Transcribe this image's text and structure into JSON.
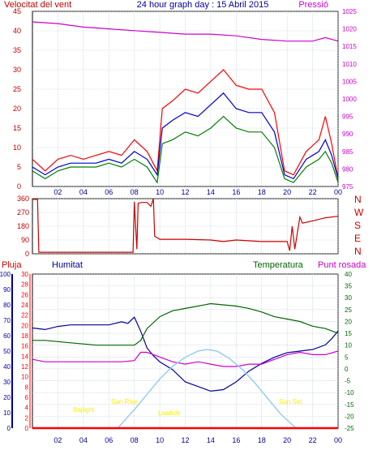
{
  "header": {
    "left_title": "Velocitat del vent",
    "center_title": "24 hour graph day : 15 Abril 2015",
    "right_title": "Pressió"
  },
  "colors": {
    "bg": "#ffffff",
    "grid": "#b7c7d2",
    "wind_left_axis": "#c00000",
    "pressure_axis": "#cc00cc",
    "wind_gust": "#ff0000",
    "wind_avg": "#0000cc",
    "wind_speed": "#008000",
    "direction": "#cc0000",
    "rain": "#ff0000",
    "humidity": "#000099",
    "temperature": "#006600",
    "dewpoint": "#cc00cc",
    "sun_curve": "#99ccee",
    "sun_labels": "#ffee00"
  },
  "compass_labels": [
    "N",
    "W",
    "S",
    "E",
    "N"
  ],
  "bottom_legend": {
    "rain": "Pluja",
    "humidity": "Humitat",
    "temperature": "Temperatura",
    "dewpoint": "Punt rosada"
  },
  "sun_labels": {
    "twilight": "Bajlight",
    "sunrise": "Sun Rise",
    "solar_noon": "Lowtide",
    "sunset": "Sun Set"
  },
  "chart_data": [
    {
      "type": "line",
      "id": "wind",
      "title": "24 hour graph day : 15 Abril 2015",
      "x_hours_start": 0,
      "x_hours_end": 24,
      "x_tick_labels": [
        "02",
        "04",
        "06",
        "08",
        "10",
        "12",
        "14",
        "16",
        "18",
        "20",
        "22",
        "00"
      ],
      "y_left_label": "Velocitat del vent",
      "y_left_ticks": [
        0,
        5,
        10,
        15,
        20,
        25,
        30,
        35,
        40,
        45
      ],
      "ylim_left": [
        0,
        45
      ],
      "y_right_label": "Pressió",
      "y_right_ticks": [
        975,
        980,
        985,
        990,
        995,
        1000,
        1005,
        1010,
        1015,
        1020,
        1025
      ],
      "ylim_right": [
        975,
        1025
      ],
      "grid": true,
      "series": [
        {
          "key": "gust",
          "axis": "left",
          "x": [
            0,
            1,
            2,
            3,
            4,
            5,
            6,
            7,
            8,
            9,
            9.8,
            10.2,
            11,
            12,
            13,
            14,
            15,
            16,
            17,
            18,
            19,
            19.8,
            20.5,
            21.5,
            22.5,
            23,
            23.5,
            24
          ],
          "y": [
            7,
            4,
            7,
            8,
            7,
            8,
            9,
            8,
            12,
            9,
            4,
            20,
            22,
            25,
            24,
            27,
            30,
            26,
            25,
            25,
            19,
            4,
            3,
            9,
            12,
            18,
            11,
            2
          ]
        },
        {
          "key": "avg",
          "axis": "left",
          "x": [
            0,
            1,
            2,
            3,
            4,
            5,
            6,
            7,
            8,
            9,
            9.8,
            10.2,
            11,
            12,
            13,
            14,
            15,
            16,
            17,
            18,
            19,
            19.8,
            20.5,
            21.5,
            22.5,
            23,
            23.5,
            24
          ],
          "y": [
            5,
            3,
            5,
            6,
            6,
            6,
            7,
            6,
            9,
            7,
            3,
            15,
            17,
            19,
            18,
            21,
            24,
            20,
            19,
            19,
            14,
            3,
            2,
            7,
            9,
            12,
            8,
            2
          ]
        },
        {
          "key": "speed",
          "axis": "left",
          "x": [
            0,
            1,
            2,
            3,
            4,
            5,
            6,
            7,
            8,
            9,
            9.8,
            10.2,
            11,
            12,
            13,
            14,
            15,
            16,
            17,
            18,
            19,
            19.8,
            20.5,
            21.5,
            22.5,
            23,
            23.5,
            24
          ],
          "y": [
            4,
            2,
            4,
            5,
            5,
            5,
            6,
            5,
            7,
            5,
            1,
            11,
            12,
            14,
            13,
            15,
            18,
            15,
            14,
            14,
            10,
            2,
            1,
            5,
            7,
            9,
            6,
            1
          ]
        },
        {
          "key": "pressure",
          "axis": "right",
          "x": [
            0,
            2,
            4,
            6,
            8,
            10,
            12,
            14,
            16,
            18,
            20,
            22,
            23,
            24
          ],
          "y": [
            1022,
            1021.5,
            1020.5,
            1020,
            1019.5,
            1019,
            1018.5,
            1018.5,
            1018,
            1017,
            1016.5,
            1016.5,
            1017.5,
            1016.5
          ]
        }
      ]
    },
    {
      "type": "line",
      "id": "direction",
      "x_hours_start": 0,
      "x_hours_end": 24,
      "y_ticks": [
        0,
        90,
        180,
        270,
        360
      ],
      "ylim": [
        0,
        360
      ],
      "grid": true,
      "series": [
        {
          "key": "direction",
          "x": [
            0,
            0.4,
            0.5,
            7.9,
            8.0,
            8.2,
            8.3,
            8.6,
            9.0,
            9.3,
            9.5,
            9.6,
            10.0,
            12,
            14,
            15,
            16,
            18,
            20,
            20.2,
            20.4,
            20.6,
            21.0,
            21.2,
            22,
            23,
            24
          ],
          "y": [
            355,
            355,
            10,
            10,
            340,
            30,
            330,
            335,
            335,
            310,
            360,
            115,
            95,
            95,
            90,
            80,
            90,
            80,
            80,
            20,
            180,
            30,
            240,
            200,
            215,
            235,
            245
          ]
        }
      ]
    },
    {
      "type": "line",
      "id": "weather",
      "x_hours_start": 0,
      "x_hours_end": 24,
      "left_axes": [
        {
          "key": "humidity_axis",
          "ticks": [
            0,
            10,
            20,
            30,
            40,
            50,
            60,
            70,
            80,
            90,
            100
          ],
          "lim": [
            0,
            100
          ]
        },
        {
          "key": "rain_axis",
          "ticks": [
            0,
            2,
            4,
            6,
            8,
            10,
            12,
            14,
            16,
            18,
            20,
            22,
            24,
            26,
            28,
            30
          ],
          "lim": [
            0,
            30
          ]
        }
      ],
      "right_axis": {
        "key": "temp_axis",
        "ticks": [
          -25,
          -20,
          -15,
          -10,
          -5,
          0,
          5,
          10,
          15,
          20,
          25,
          30,
          35,
          40
        ],
        "lim": [
          -25,
          40
        ]
      },
      "grid": true,
      "series": [
        {
          "key": "humidity",
          "axis": "humidity_axis",
          "x": [
            0,
            1,
            2,
            3,
            4,
            5,
            6,
            7,
            7.5,
            8,
            8.5,
            9,
            9.5,
            10,
            11,
            12,
            13,
            14,
            15,
            16,
            17,
            18,
            19,
            20,
            21,
            22,
            23,
            23.5,
            24
          ],
          "y": [
            65,
            64,
            66,
            67,
            67,
            67,
            67,
            69,
            68,
            72,
            63,
            52,
            47,
            43,
            38,
            30,
            27,
            24,
            25,
            30,
            37,
            42,
            46,
            49,
            50,
            51,
            54,
            58,
            63
          ]
        },
        {
          "key": "temperature",
          "axis": "temp_axis",
          "x": [
            0,
            1,
            2,
            3,
            4,
            5,
            6,
            7,
            8,
            8.5,
            9,
            10,
            11,
            12,
            13,
            14,
            15,
            16,
            17,
            18,
            19,
            20,
            21,
            22,
            23,
            24
          ],
          "y": [
            12,
            12,
            11.5,
            11,
            10.5,
            10,
            10,
            10,
            10,
            12,
            17,
            22,
            24.5,
            25.5,
            26.5,
            27.5,
            27,
            26.5,
            25.5,
            24,
            22,
            21,
            20,
            18,
            17,
            15
          ]
        },
        {
          "key": "dewpoint",
          "axis": "temp_axis",
          "x": [
            0,
            1,
            2,
            3,
            4,
            5,
            6,
            7,
            8,
            8.5,
            9,
            10,
            11,
            12,
            13,
            14,
            15,
            16,
            17,
            18,
            19,
            20,
            21,
            22,
            23,
            24
          ],
          "y": [
            4,
            3,
            3,
            3,
            3,
            3,
            3,
            3,
            3.5,
            7,
            7,
            5,
            3,
            2,
            3,
            2,
            1,
            1,
            2,
            2,
            4,
            6,
            7,
            6,
            6,
            7.5
          ]
        },
        {
          "key": "sun",
          "axis": "humidity_axis",
          "x": [
            6.7,
            8,
            9,
            10,
            11,
            12,
            13,
            13.7,
            14.5,
            15.5,
            16.5,
            17.5,
            18.5,
            19.5,
            20.7
          ],
          "y": [
            0,
            12,
            22,
            32,
            40,
            46,
            50,
            51,
            50,
            45,
            38,
            29,
            19,
            9,
            0
          ]
        },
        {
          "key": "rain",
          "axis": "rain_axis",
          "x": [
            0,
            24
          ],
          "y": [
            0,
            0
          ]
        }
      ]
    }
  ]
}
